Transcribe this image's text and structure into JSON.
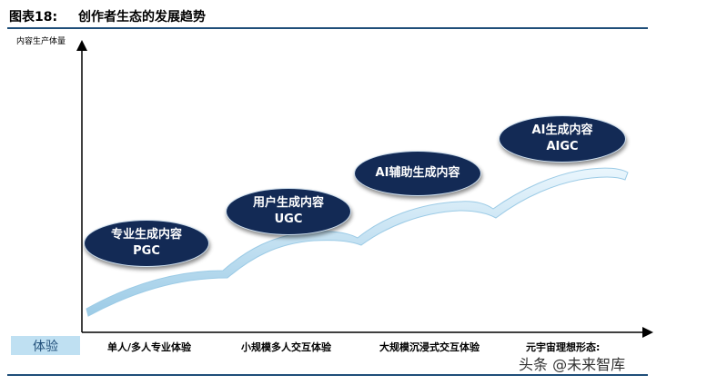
{
  "title": {
    "label": "图表18:",
    "text": "创作者生态的发展趋势"
  },
  "y_axis_label": "内容生产体量",
  "x_axis_label": "体验",
  "bubbles": [
    {
      "line1": "专业生成内容",
      "line2": "PGC"
    },
    {
      "line1": "用户生成内容",
      "line2": "UGC"
    },
    {
      "line1": "AI辅助生成内容",
      "line2": ""
    },
    {
      "line1": "AI生成内容",
      "line2": "AIGC"
    }
  ],
  "stages": [
    "单人/多人专业体验",
    "小规模多人交互体验",
    "大规模沉浸式交互体验",
    "元宇宙理想形态:"
  ],
  "watermark": "头条 @未来智库",
  "colors": {
    "navy": "#132a55",
    "rule": "#1f4e79",
    "ribbon": "#bfe0f2",
    "chip": "#bfe0f2"
  }
}
